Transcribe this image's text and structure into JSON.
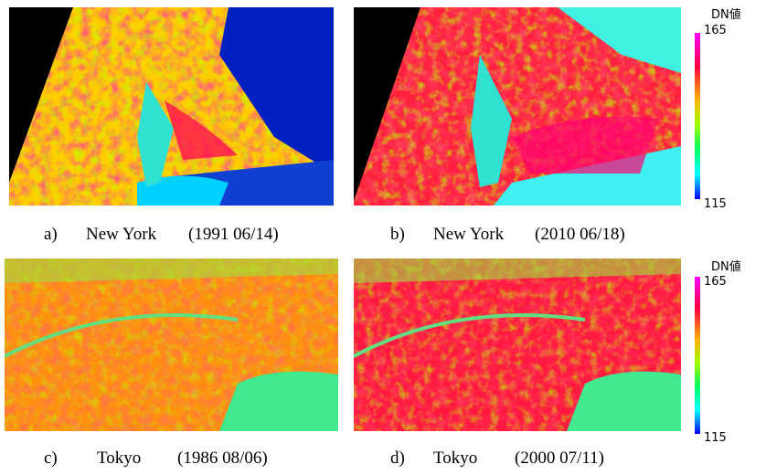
{
  "panels": [
    {
      "letter": "a)",
      "place": "New York",
      "date": "(1991 06/14)"
    },
    {
      "letter": "b)",
      "place": "New York",
      "date": "(2010 06/18)"
    },
    {
      "letter": "c)",
      "place": "Tokyo",
      "date": "(1986 08/06)"
    },
    {
      "letter": "d)",
      "place": "Tokyo",
      "date": "(2000 07/11)"
    }
  ],
  "colorbars": [
    {
      "label": "DN値",
      "max": 165,
      "min": 115
    },
    {
      "label": "DN値",
      "max": 165,
      "min": 115
    }
  ]
}
